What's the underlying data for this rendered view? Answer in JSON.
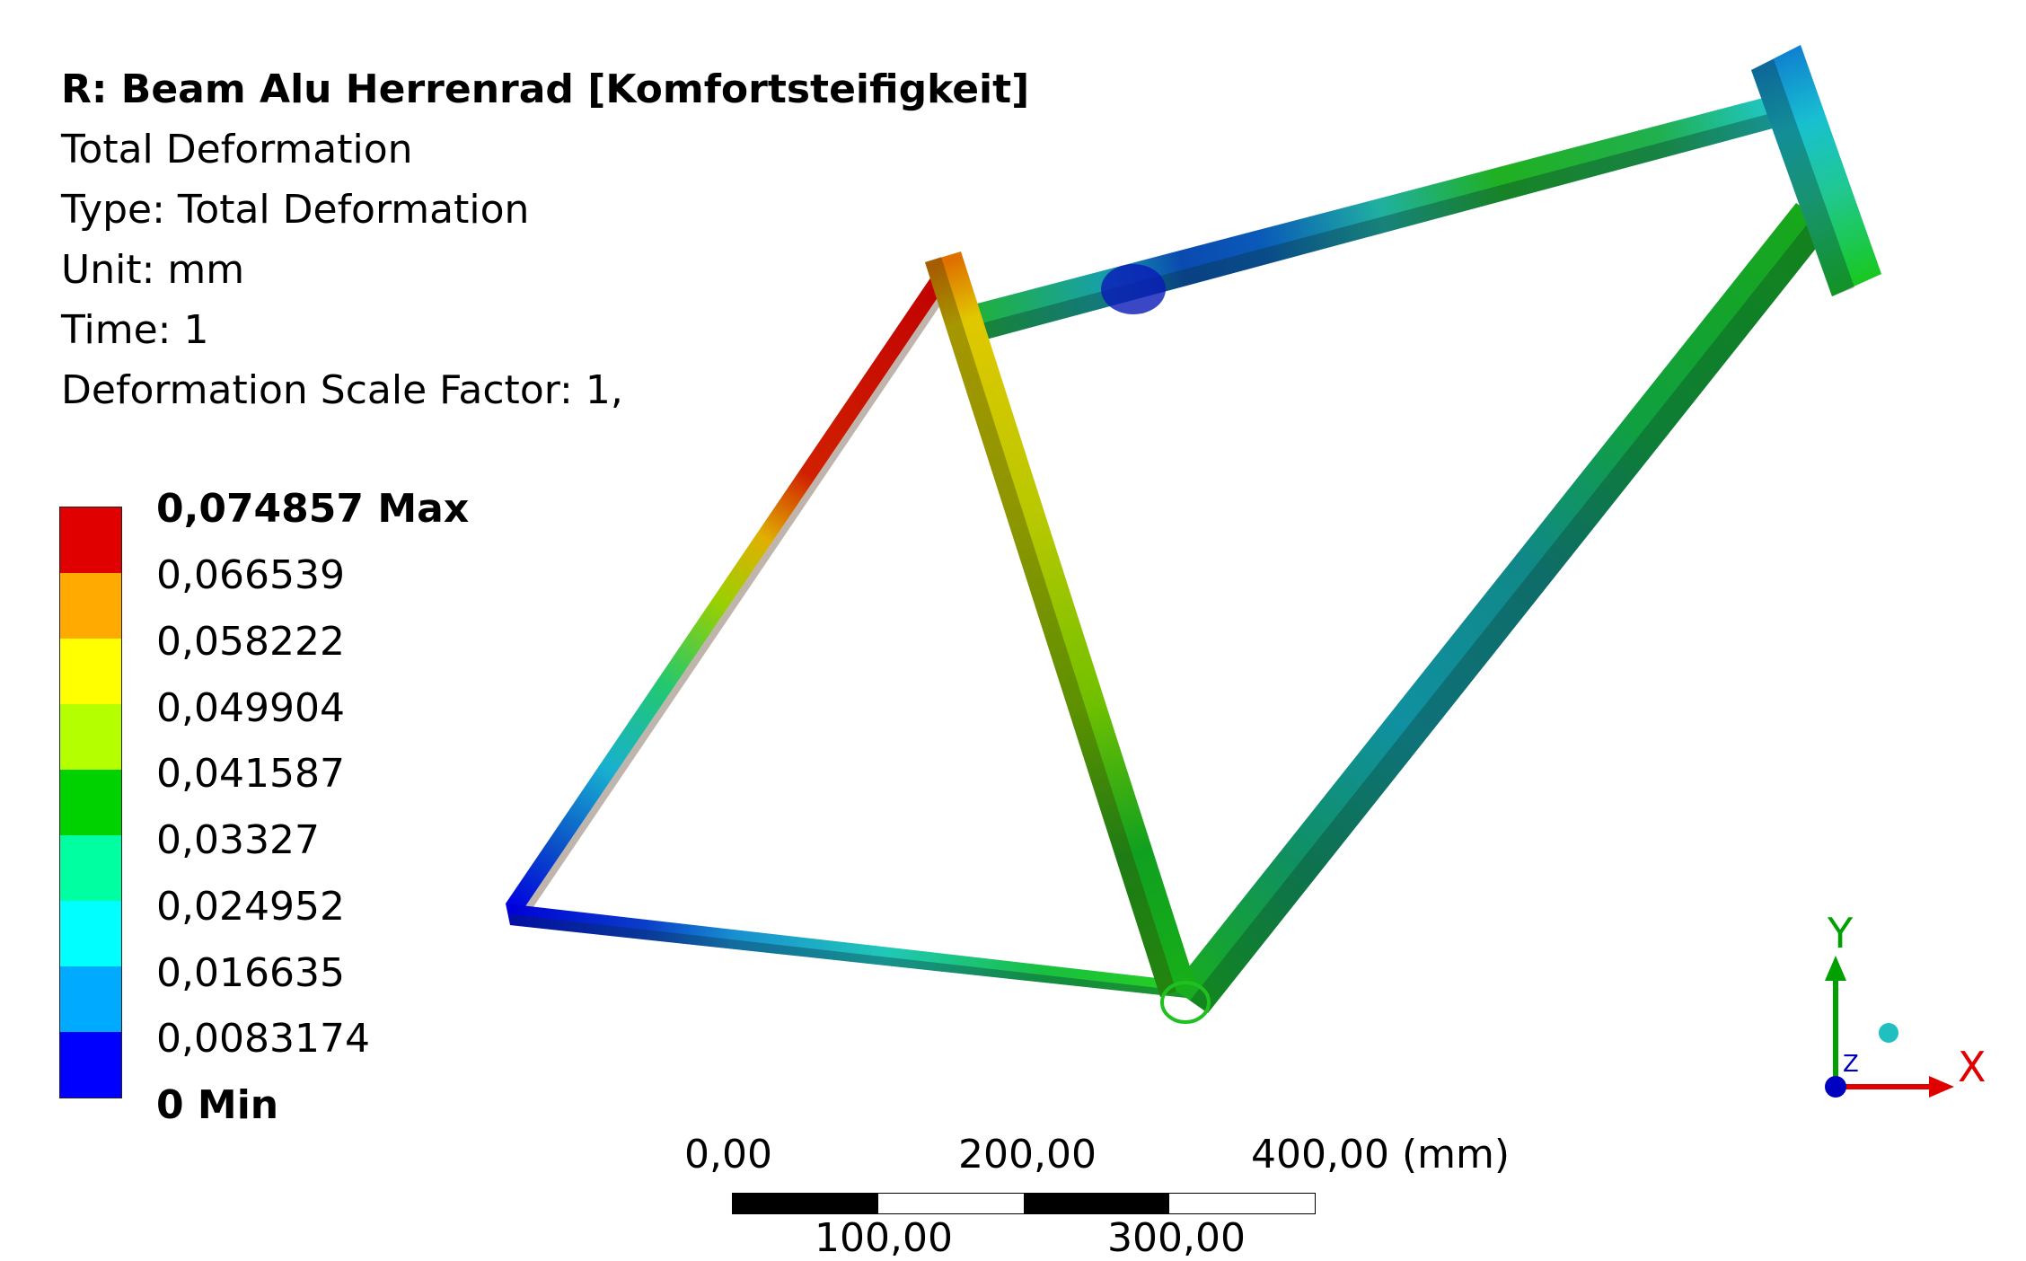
{
  "header": {
    "title": "R: Beam Alu Herrenrad [Komfortsteifigkeit]",
    "result": "Total Deformation",
    "type": "Type: Total Deformation",
    "unit": "Unit: mm",
    "time": "Time: 1",
    "scale_factor": "Deformation Scale Factor: 1,"
  },
  "legend": {
    "labels": [
      "0,074857 Max",
      "0,066539",
      "0,058222",
      "0,049904",
      "0,041587",
      "0,03327",
      "0,024952",
      "0,016635",
      "0,0083174",
      "0 Min"
    ],
    "colors": [
      "#e00000",
      "#ffaa00",
      "#ffff00",
      "#b4ff00",
      "#00d200",
      "#00ffa0",
      "#00ffff",
      "#00aaff",
      "#0000ff"
    ]
  },
  "scale_bar": {
    "top_labels": [
      "0,00",
      "200,00",
      "400,00 (mm)"
    ],
    "bottom_labels": [
      "100,00",
      "300,00"
    ]
  },
  "triad": {
    "x": "X",
    "y": "Y",
    "z": "Z",
    "x_color": "#e00000",
    "y_color": "#00a000",
    "z_color": "#0000c0"
  }
}
